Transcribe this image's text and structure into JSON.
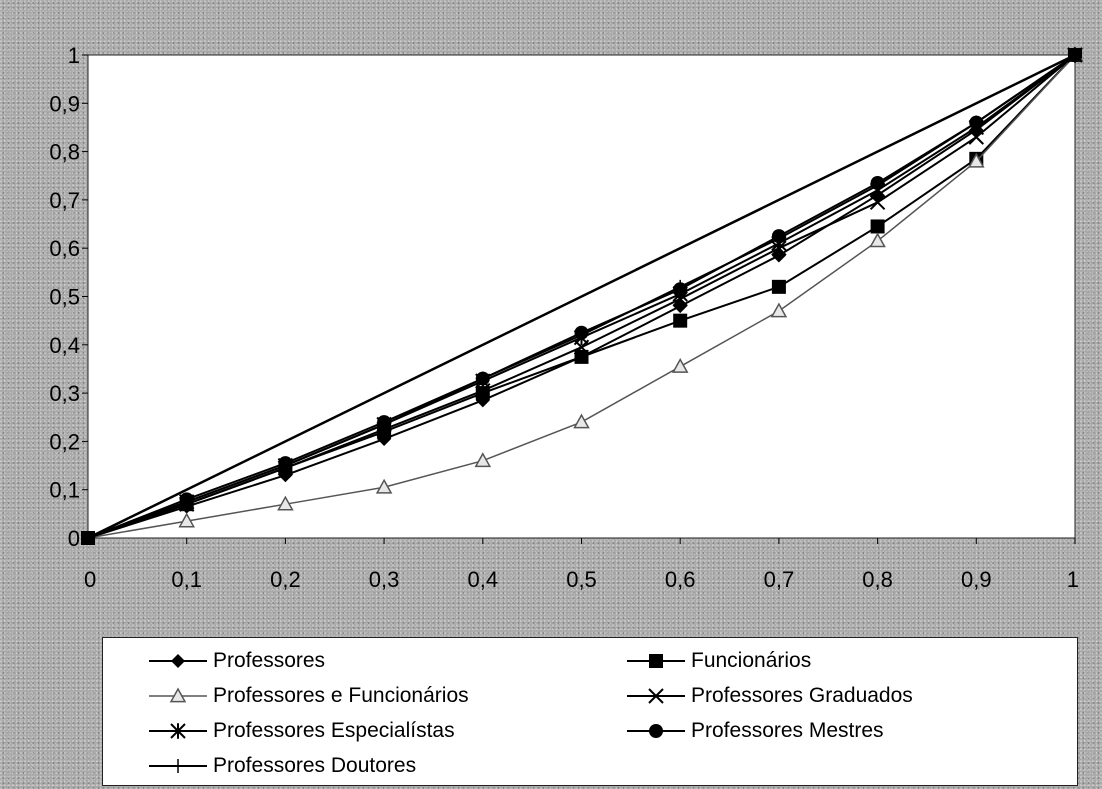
{
  "chart_data": {
    "type": "line",
    "title": "",
    "xlabel": "",
    "ylabel": "",
    "xlim": [
      0,
      1
    ],
    "ylim": [
      0,
      1
    ],
    "x_tick_labels": [
      "0",
      "0,1",
      "0,2",
      "0,3",
      "0,4",
      "0,5",
      "0,6",
      "0,7",
      "0,8",
      "0,9",
      "1"
    ],
    "y_tick_labels": [
      "0",
      "0,1",
      "0,2",
      "0,3",
      "0,4",
      "0,5",
      "0,6",
      "0,7",
      "0,8",
      "0,9",
      "1"
    ],
    "grid": false,
    "legend_position": "bottom",
    "x": [
      0,
      0.1,
      0.2,
      0.3,
      0.4,
      0.5,
      0.6,
      0.7,
      0.8,
      0.9,
      1
    ],
    "equality_line": {
      "x": [
        0,
        1
      ],
      "values": [
        0,
        1
      ]
    },
    "series": [
      {
        "name": "Professores",
        "marker": "diamond",
        "color": "#000000",
        "values": [
          0,
          0.065,
          0.13,
          0.205,
          0.285,
          0.375,
          0.48,
          0.585,
          0.71,
          0.845,
          1
        ]
      },
      {
        "name": "Funcionários",
        "marker": "square",
        "color": "#000000",
        "values": [
          0,
          0.07,
          0.145,
          0.22,
          0.3,
          0.375,
          0.45,
          0.52,
          0.645,
          0.785,
          1
        ]
      },
      {
        "name": "Professores e Funcionários",
        "marker": "triangle",
        "color": "#555555",
        "values": [
          0,
          0.035,
          0.07,
          0.105,
          0.16,
          0.24,
          0.355,
          0.47,
          0.615,
          0.78,
          1
        ]
      },
      {
        "name": "Professores Graduados",
        "marker": "x",
        "color": "#000000",
        "values": [
          0,
          0.07,
          0.145,
          0.225,
          0.305,
          0.395,
          0.495,
          0.6,
          0.695,
          0.83,
          1
        ]
      },
      {
        "name": "Professores Especialístas",
        "marker": "star",
        "color": "#000000",
        "values": [
          0,
          0.075,
          0.15,
          0.235,
          0.325,
          0.415,
          0.505,
          0.61,
          0.72,
          0.85,
          1
        ]
      },
      {
        "name": "Professores Mestres",
        "marker": "circle",
        "color": "#000000",
        "values": [
          0,
          0.08,
          0.155,
          0.24,
          0.33,
          0.425,
          0.515,
          0.625,
          0.735,
          0.86,
          1
        ]
      },
      {
        "name": "Professores Doutores",
        "marker": "plus",
        "color": "#000000",
        "values": [
          0,
          0.075,
          0.15,
          0.235,
          0.33,
          0.42,
          0.52,
          0.62,
          0.73,
          0.86,
          1
        ]
      }
    ]
  }
}
